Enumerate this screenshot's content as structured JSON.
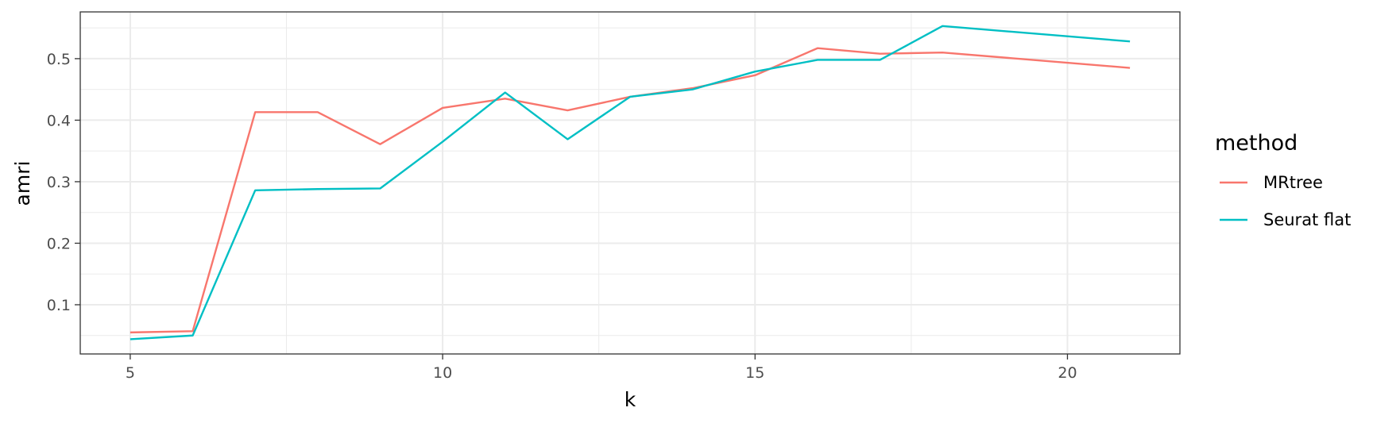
{
  "chart_data": {
    "type": "line",
    "xlabel": "k",
    "ylabel": "amri",
    "xlim": [
      4.2,
      21.8
    ],
    "ylim": [
      0.02,
      0.576
    ],
    "x_ticks": [
      5,
      10,
      15,
      20
    ],
    "x_tick_labels": [
      "5",
      "10",
      "15",
      "20"
    ],
    "y_ticks": [
      0.1,
      0.2,
      0.3,
      0.4,
      0.5
    ],
    "y_tick_labels": [
      "0.1",
      "0.2",
      "0.3",
      "0.4",
      "0.5"
    ],
    "grid": true,
    "legend": {
      "title": "method",
      "position": "right"
    },
    "series": [
      {
        "name": "MRtree",
        "color": "#F8766D",
        "x": [
          5,
          6,
          7,
          8,
          9,
          10,
          11,
          12,
          13,
          14,
          15,
          16,
          17,
          18,
          21
        ],
        "y": [
          0.055,
          0.057,
          0.413,
          0.413,
          0.361,
          0.42,
          0.435,
          0.416,
          0.438,
          0.452,
          0.473,
          0.517,
          0.508,
          0.51,
          0.485
        ]
      },
      {
        "name": "Seurat flat",
        "color": "#00BFC4",
        "x": [
          5,
          6,
          7,
          8,
          9,
          10,
          11,
          12,
          13,
          14,
          15,
          16,
          17,
          18,
          21
        ],
        "y": [
          0.044,
          0.05,
          0.286,
          0.288,
          0.289,
          0.365,
          0.445,
          0.369,
          0.438,
          0.45,
          0.479,
          0.498,
          0.498,
          0.553,
          0.528
        ]
      }
    ]
  }
}
